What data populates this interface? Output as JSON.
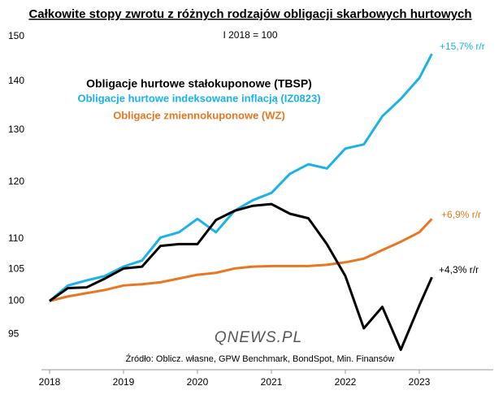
{
  "chart_data": {
    "type": "line",
    "title": "Całkowite stopy zwrotu z różnych rodzajów obligacji skarbowych hurtowych",
    "subtitle": "I 2018 = 100",
    "source": "Źródło: Oblicz. własne, GPW Benchmark, BondSpot,  Min. Finansów",
    "logo": "QNEWS.PL",
    "x": [
      2018,
      2018.25,
      2018.5,
      2018.75,
      2019,
      2019.25,
      2019.5,
      2019.75,
      2020,
      2020.25,
      2020.5,
      2020.75,
      2021,
      2021.25,
      2021.5,
      2021.75,
      2022,
      2022.25,
      2022.5,
      2022.75,
      2023,
      2023.17
    ],
    "series": [
      {
        "name": "Obligacje  hurtowe stałokuponowe  (TBSP)",
        "color": "#000000",
        "values": [
          100,
          102.0,
          102.1,
          103.5,
          105.1,
          105.4,
          108.8,
          109.1,
          109.1,
          113.2,
          114.8,
          115.7,
          116.0,
          114.3,
          113.5,
          109.1,
          103.9,
          95.9,
          99.1,
          92.8,
          99.3,
          103.7
        ]
      },
      {
        "name": "Obligacje hurtowe indeksowane inflacją (IZ0823)",
        "color": "#1ab2e8",
        "values": [
          100,
          102.4,
          103.2,
          103.9,
          105.4,
          106.4,
          110.2,
          111.1,
          113.4,
          111.1,
          114.8,
          116.7,
          118.0,
          121.5,
          123.3,
          122.5,
          126.3,
          127.1,
          132.7,
          136.3,
          140.7,
          146.0
        ]
      },
      {
        "name": "Obligacje zmiennokuponowe (WZ)",
        "color": "#e87722",
        "values": [
          100,
          100.7,
          101.2,
          101.7,
          102.4,
          102.6,
          102.9,
          103.5,
          104.1,
          104.4,
          105.1,
          105.4,
          105.5,
          105.5,
          105.5,
          105.7,
          106.1,
          106.7,
          108.1,
          109.5,
          111.1,
          113.4
        ]
      }
    ],
    "annotations": [
      "+15,7% r/r",
      "+6,9% r/r",
      "+4,3% r/r"
    ],
    "xlim": [
      2018,
      2024
    ],
    "xticks": [
      2018,
      2019,
      2020,
      2021,
      2022,
      2023
    ],
    "ylim": [
      90,
      152
    ],
    "yticks": [
      95,
      100,
      105,
      110,
      120,
      130,
      140,
      150
    ],
    "ylog": true,
    "grid": false
  }
}
